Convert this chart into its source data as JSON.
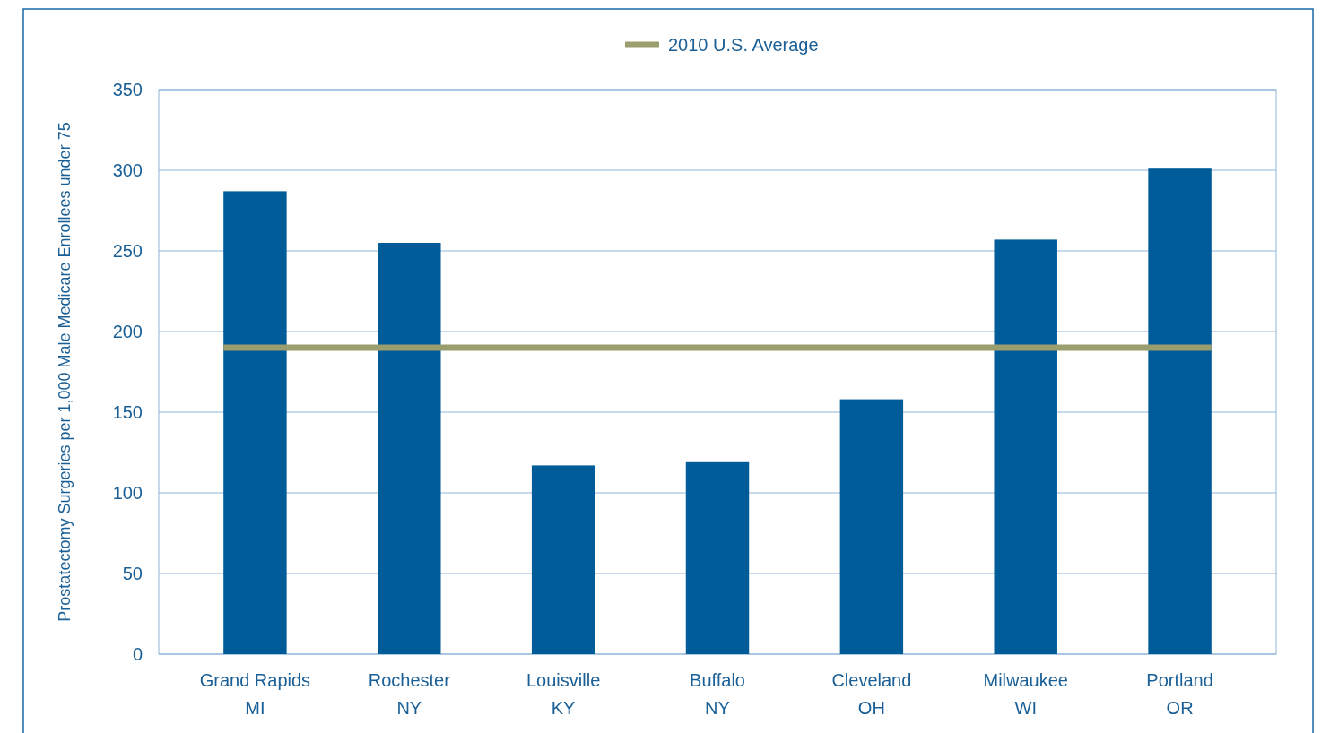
{
  "chart_data": {
    "type": "bar",
    "ylabel": "Prostatectomy Surgeries per 1,000 Male Medicare Enrollees under 75",
    "categories": [
      "Grand Rapids\nMI",
      "Rochester\nNY",
      "Louisville\nKY",
      "Buffalo\nNY",
      "Cleveland\nOH",
      "Milwaukee\nWI",
      "Portland\nOR"
    ],
    "values": [
      287,
      255,
      117,
      119,
      158,
      257,
      301
    ],
    "color": "#005b99",
    "ylim": [
      0,
      350
    ],
    "yticks": [
      0,
      50,
      100,
      150,
      200,
      250,
      300,
      350
    ],
    "grid": "y",
    "legend": "top",
    "ref_lines": [
      {
        "axis": "y",
        "value": 190,
        "label": "2010 U.S. Average",
        "color": "#9a9e6e"
      }
    ]
  }
}
